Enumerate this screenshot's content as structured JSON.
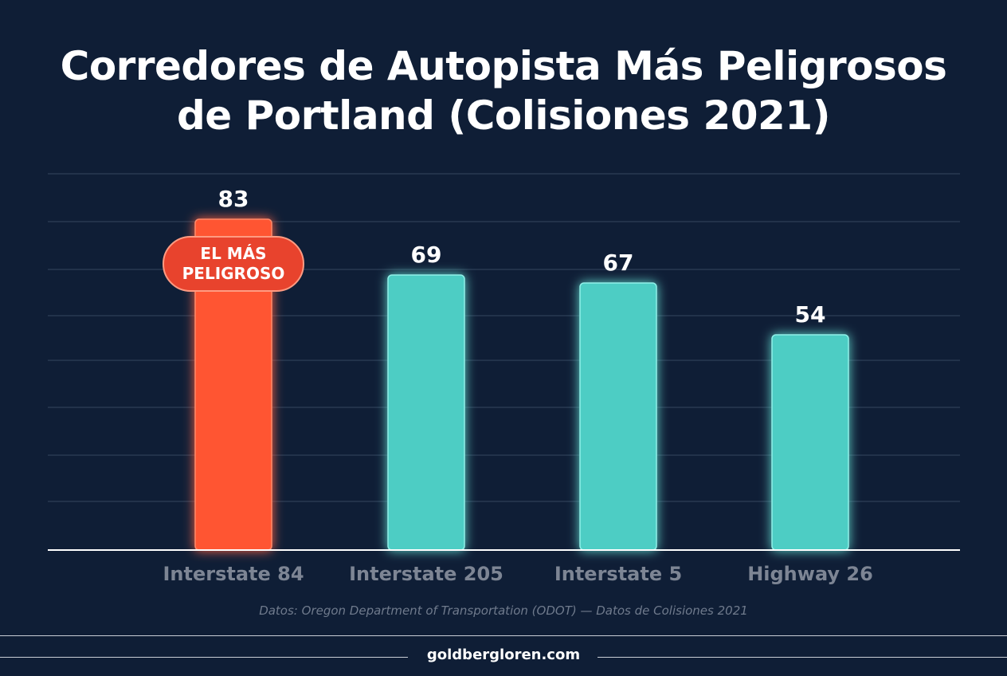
{
  "title_line1": "Corredores de Autopista Más Peligrosos",
  "title_line2": "de Portland (Colisiones 2021)",
  "chart_data": {
    "type": "bar",
    "categories": [
      "Interstate 84",
      "Interstate 205",
      "Interstate 5",
      "Highway 26"
    ],
    "values": [
      83,
      69,
      67,
      54
    ],
    "data_labels": [
      "83",
      "69",
      "67",
      "54"
    ],
    "highlight_index": 0,
    "highlight_badge": [
      "EL MÁS",
      "PELIGROSO"
    ],
    "ylim": [
      0,
      100
    ],
    "grid": true,
    "colors": {
      "highlight": "#ff5533",
      "bar": "#4ecdc4",
      "badge": "#e8432d",
      "axis": "#ffffff",
      "grid": "#34465f",
      "category_label": "#7d8594"
    }
  },
  "source": "Datos: Oregon Department of Transportation (ODOT) — Datos de Colisiones 2021",
  "footer": "goldbergloren.com"
}
